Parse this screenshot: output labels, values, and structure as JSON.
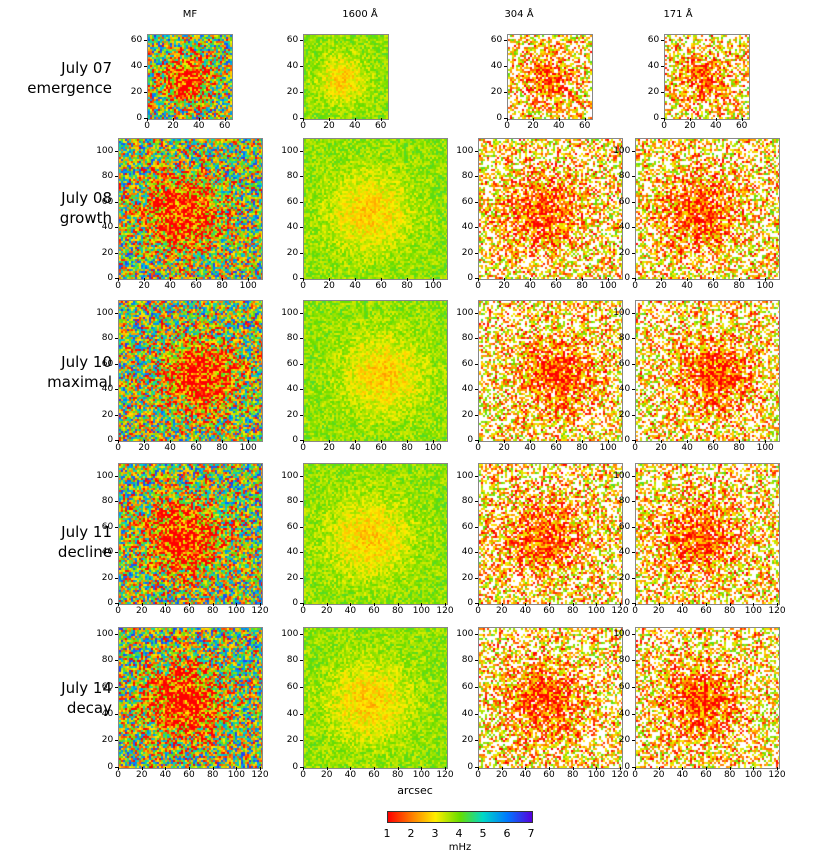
{
  "columns": [
    "MF",
    "1600 Å",
    "304 Å",
    "171 Å"
  ],
  "rows": [
    {
      "date": "July 07",
      "phase": "emergence"
    },
    {
      "date": "July 08",
      "phase": "growth"
    },
    {
      "date": "July 10",
      "phase": "maximal"
    },
    {
      "date": "July 11",
      "phase": "decline"
    },
    {
      "date": "July 14",
      "phase": "decay"
    }
  ],
  "axes": {
    "row0": {
      "x_ticks": [
        "0",
        "20",
        "40",
        "60"
      ],
      "y_ticks": [
        "0",
        "20",
        "40",
        "60"
      ]
    },
    "row1": {
      "x_ticks": [
        "0",
        "20",
        "40",
        "60",
        "80",
        "100"
      ],
      "y_ticks": [
        "0",
        "20",
        "40",
        "60",
        "80",
        "100"
      ]
    },
    "row2": {
      "x_ticks": [
        "0",
        "20",
        "40",
        "60",
        "80",
        "100"
      ],
      "y_ticks": [
        "0",
        "20",
        "40",
        "60",
        "80",
        "100"
      ]
    },
    "row3": {
      "x_ticks": [
        "0",
        "20",
        "40",
        "60",
        "80",
        "100",
        "120"
      ],
      "y_ticks": [
        "0",
        "20",
        "40",
        "60",
        "80",
        "100"
      ]
    },
    "row4": {
      "x_ticks": [
        "0",
        "20",
        "40",
        "60",
        "80",
        "100",
        "120"
      ],
      "y_ticks": [
        "0",
        "20",
        "40",
        "60",
        "80",
        "100"
      ]
    }
  },
  "x_axis_label": "arcsec",
  "colorbar": {
    "ticks": [
      "1",
      "2",
      "3",
      "4",
      "5",
      "6",
      "7"
    ],
    "unit": "mHz",
    "colors": [
      "#ff0000",
      "#ff8800",
      "#ffee00",
      "#66dd00",
      "#00d8c8",
      "#0077ff",
      "#5500dd"
    ]
  }
}
